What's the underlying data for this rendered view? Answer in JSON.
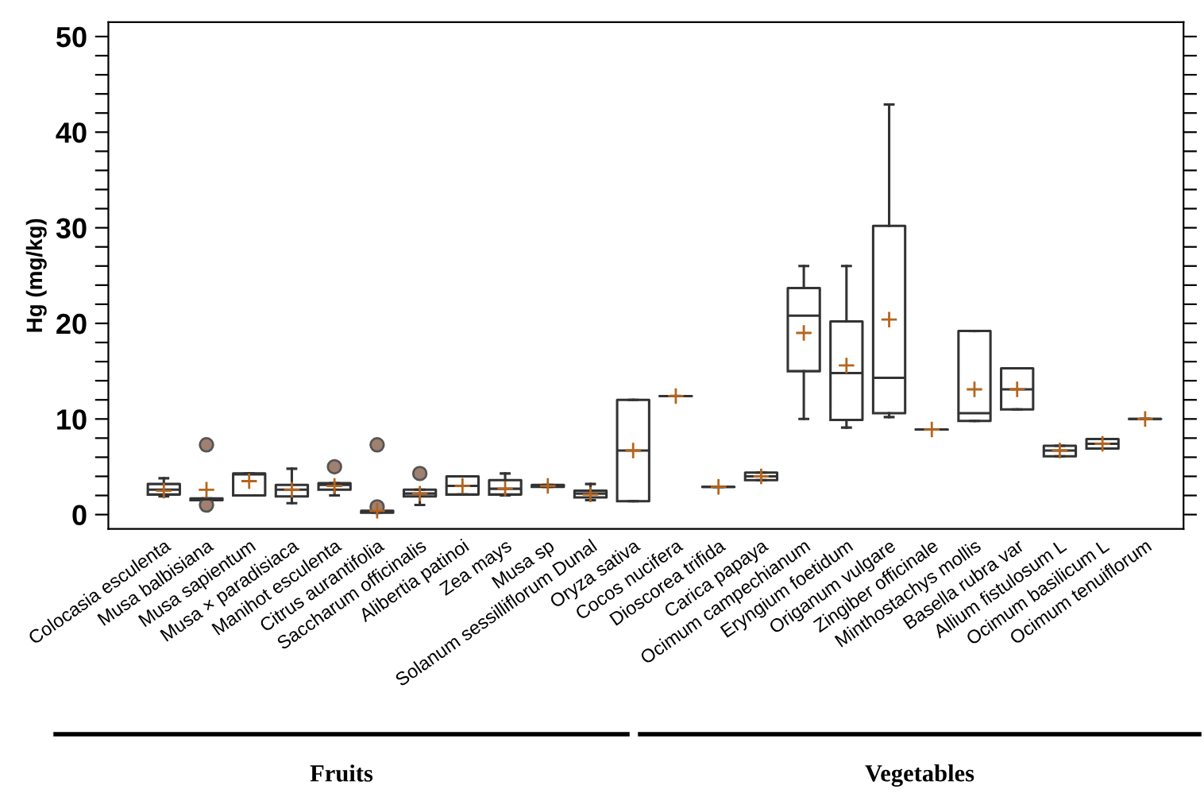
{
  "chart_data": {
    "type": "box",
    "ylabel": "Hg (mg/kg)",
    "categories": [
      "Colocasia esculenta",
      "Musa balbisiana",
      "Musa sapientum",
      "Musa × paradisiaca",
      "Manihot esculenta",
      "Citrus aurantifolia",
      "Saccharum officinalis",
      "Alibertia patinoi",
      "Zea mays",
      "Musa sp",
      "Solanum sessilliflorum Dunal",
      "Oryza sativa",
      "Cocos nucifera",
      "Dioscorea trifida",
      "Carica papaya",
      "Ocimum campechianum",
      "Eryngium foetidum",
      "Origanum vulgare",
      "Zingiber officinale",
      "Minthostachys mollis",
      "Basella rubra var",
      "Allium fistulosum L",
      "Ocimum basilicum L",
      "Ocimum tenuiflorum"
    ],
    "boxes": [
      {
        "low": 1.9,
        "q1": 2.1,
        "median": 2.6,
        "q3": 3.2,
        "high": 3.8,
        "mean": 2.5
      },
      {
        "low": 1.5,
        "q1": 1.5,
        "median": 1.6,
        "q3": 1.7,
        "high": 1.7,
        "mean": 2.6,
        "outliers": [
          7.3,
          1.0
        ]
      },
      {
        "low": 2.0,
        "q1": 2.0,
        "median": 4.2,
        "q3": 4.3,
        "high": 4.3,
        "mean": 3.5
      },
      {
        "low": 1.2,
        "q1": 1.9,
        "median": 2.6,
        "q3": 3.1,
        "high": 4.8,
        "mean": 2.6
      },
      {
        "low": 2.0,
        "q1": 2.6,
        "median": 3.1,
        "q3": 3.3,
        "high": 3.3,
        "mean": 3.0,
        "outliers": [
          5.0
        ]
      },
      {
        "low": 0.2,
        "q1": 0.2,
        "median": 0.3,
        "q3": 0.4,
        "high": 0.4,
        "mean": 0.4,
        "outliers": [
          7.3,
          0.8
        ]
      },
      {
        "low": 1.0,
        "q1": 1.9,
        "median": 2.2,
        "q3": 2.6,
        "high": 2.6,
        "mean": 2.2,
        "outliers": [
          4.3
        ]
      },
      {
        "low": 2.1,
        "q1": 2.1,
        "median": 3.0,
        "q3": 4.0,
        "high": 4.0,
        "mean": 3.0
      },
      {
        "low": 2.0,
        "q1": 2.1,
        "median": 2.7,
        "q3": 3.6,
        "high": 4.3,
        "mean": 2.7
      },
      {
        "low": 2.9,
        "q1": 2.9,
        "median": 3.0,
        "q3": 3.1,
        "high": 3.1,
        "mean": 3.0
      },
      {
        "low": 1.5,
        "q1": 1.8,
        "median": 2.2,
        "q3": 2.5,
        "high": 3.2,
        "mean": 2.1
      },
      {
        "low": 1.4,
        "q1": 1.4,
        "median": 6.7,
        "q3": 12.0,
        "high": 12.0,
        "mean": 6.7
      },
      {
        "low": 12.4,
        "q1": 12.4,
        "median": 12.4,
        "q3": 12.4,
        "high": 12.4,
        "mean": 12.4
      },
      {
        "low": 2.9,
        "q1": 2.9,
        "median": 2.9,
        "q3": 2.9,
        "high": 2.9,
        "mean": 2.9
      },
      {
        "low": 3.6,
        "q1": 3.6,
        "median": 4.0,
        "q3": 4.4,
        "high": 4.4,
        "mean": 4.0
      },
      {
        "low": 10.0,
        "q1": 15.0,
        "median": 20.8,
        "q3": 23.7,
        "high": 26.0,
        "mean": 19.0
      },
      {
        "low": 9.1,
        "q1": 9.9,
        "median": 14.8,
        "q3": 20.2,
        "high": 26.0,
        "mean": 15.6
      },
      {
        "low": 10.2,
        "q1": 10.6,
        "median": 14.3,
        "q3": 30.2,
        "high": 42.9,
        "mean": 20.4
      },
      {
        "low": 8.9,
        "q1": 8.9,
        "median": 8.9,
        "q3": 8.9,
        "high": 8.9,
        "mean": 8.9
      },
      {
        "low": 9.8,
        "q1": 9.8,
        "median": 10.6,
        "q3": 19.2,
        "high": 19.2,
        "mean": 13.1
      },
      {
        "low": 11.0,
        "q1": 11.0,
        "median": 13.1,
        "q3": 15.3,
        "high": 15.3,
        "mean": 13.1
      },
      {
        "low": 6.1,
        "q1": 6.1,
        "median": 6.7,
        "q3": 7.2,
        "high": 7.2,
        "mean": 6.7
      },
      {
        "low": 6.9,
        "q1": 6.9,
        "median": 7.4,
        "q3": 7.9,
        "high": 7.9,
        "mean": 7.4
      },
      {
        "low": 10.0,
        "q1": 10.0,
        "median": 10.0,
        "q3": 10.0,
        "high": 10.0,
        "mean": 10.0
      }
    ],
    "ylim": [
      -1.5,
      51.5
    ],
    "yticks": [
      0,
      {
        "value": 2,
        "label": null
      },
      {
        "value": 4,
        "label": null
      },
      {
        "value": 6,
        "label": null
      },
      {
        "value": 8,
        "label": null
      },
      10,
      {
        "value": 12,
        "label": null
      },
      {
        "value": 14,
        "label": null
      },
      {
        "value": 16,
        "label": null
      },
      {
        "value": 18,
        "label": null
      },
      20,
      {
        "value": 22,
        "label": null
      },
      {
        "value": 24,
        "label": null
      },
      {
        "value": 26,
        "label": null
      },
      {
        "value": 28,
        "label": null
      },
      30,
      {
        "value": 32,
        "label": null
      },
      {
        "value": 34,
        "label": null
      },
      {
        "value": 36,
        "label": null
      },
      {
        "value": 38,
        "label": null
      },
      40,
      {
        "value": 42,
        "label": null
      },
      {
        "value": 44,
        "label": null
      },
      {
        "value": 46,
        "label": null
      },
      {
        "value": 48,
        "label": null
      },
      50
    ],
    "annotations": [
      "Fruits",
      "Vegetables"
    ]
  }
}
